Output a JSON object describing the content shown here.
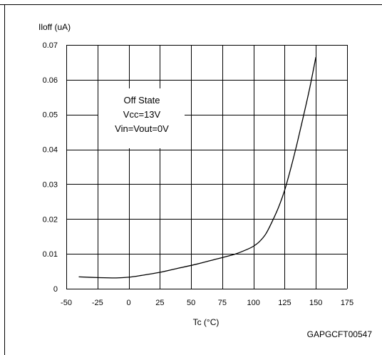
{
  "chart_data": {
    "type": "line",
    "title": "",
    "ylabel": "Iloff (uA)",
    "xlabel": "Tc (°C)",
    "xlim": [
      -50,
      175
    ],
    "ylim": [
      0,
      0.07
    ],
    "x_ticks": [
      -50,
      -25,
      0,
      25,
      50,
      75,
      100,
      125,
      150,
      175
    ],
    "y_ticks": [
      0,
      0.01,
      0.02,
      0.03,
      0.04,
      0.05,
      0.06,
      0.07
    ],
    "x_tick_labels": [
      "-50",
      "-25",
      "0",
      "25",
      "50",
      "75",
      "100",
      "125",
      "150",
      "175"
    ],
    "y_tick_labels": [
      "0",
      "0.01",
      "0.02",
      "0.03",
      "0.04",
      "0.05",
      "0.06",
      "0.07"
    ],
    "grid": true,
    "legend": "none",
    "series": [
      {
        "color": "#000000",
        "x": [
          -40,
          -25,
          -10,
          0,
          10,
          25,
          40,
          55,
          70,
          85,
          95,
          100,
          105,
          110,
          115,
          120,
          125,
          130,
          135,
          140,
          145,
          150
        ],
        "y": [
          0.0034,
          0.0032,
          0.0031,
          0.0033,
          0.0038,
          0.0047,
          0.0059,
          0.0071,
          0.0085,
          0.0099,
          0.0113,
          0.0122,
          0.0136,
          0.0158,
          0.0193,
          0.0233,
          0.0283,
          0.0347,
          0.0418,
          0.0495,
          0.0575,
          0.0665
        ]
      }
    ],
    "annotation_lines": [
      "Off State",
      "Vcc=13V",
      "Vin=Vout=0V"
    ],
    "figure_code": "GAPGCFT00547"
  }
}
